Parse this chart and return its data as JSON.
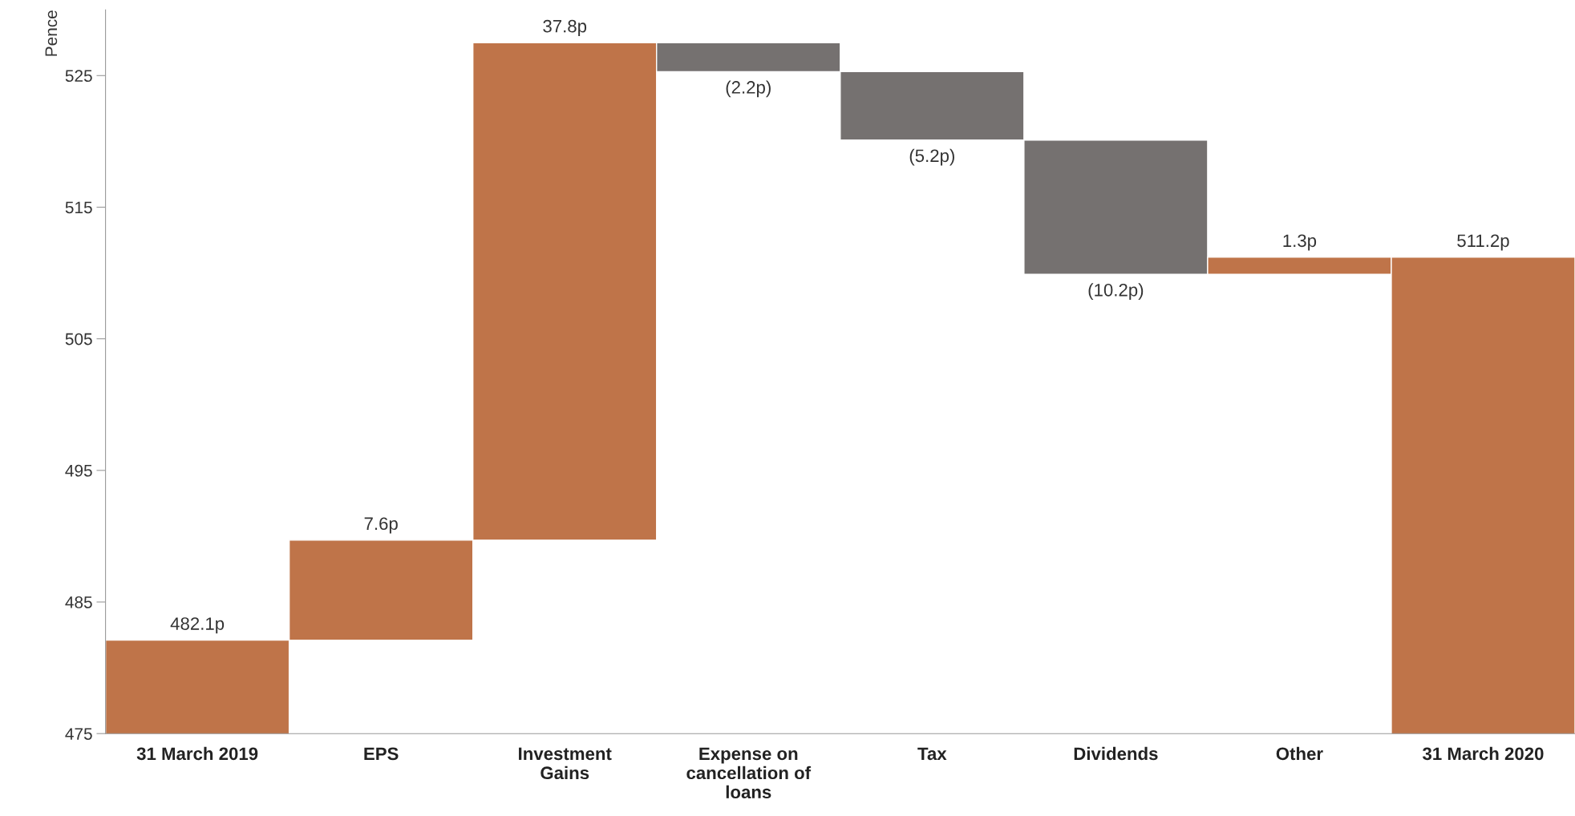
{
  "chart_data": {
    "type": "bar",
    "ylabel": "Pence",
    "categories": [
      "31 March 2019",
      "EPS",
      "Investment Gains",
      "Expense on cancellation of loans",
      "Tax",
      "Dividends",
      "Other",
      "31 March 2020"
    ],
    "values": [
      482.1,
      7.6,
      37.8,
      -2.2,
      -5.2,
      -10.2,
      1.3,
      511.2
    ],
    "base": [
      null,
      482.1,
      489.7,
      527.5,
      525.3,
      520.1,
      509.9,
      null
    ],
    "colors": [
      "#bf7449",
      "#bf7449",
      "#bf7449",
      "#757170",
      "#757170",
      "#757170",
      "#bf7449",
      "#bf7449"
    ],
    "value_labels": [
      "482.1p",
      "7.6p",
      "37.8p",
      "(2.2p)",
      "(5.2p)",
      "(10.2p)",
      "1.3p",
      "511.2p"
    ],
    "ylim": [
      475,
      530
    ],
    "yticks": [
      475,
      485,
      495,
      505,
      515,
      525
    ],
    "grid": false,
    "legend": false
  }
}
